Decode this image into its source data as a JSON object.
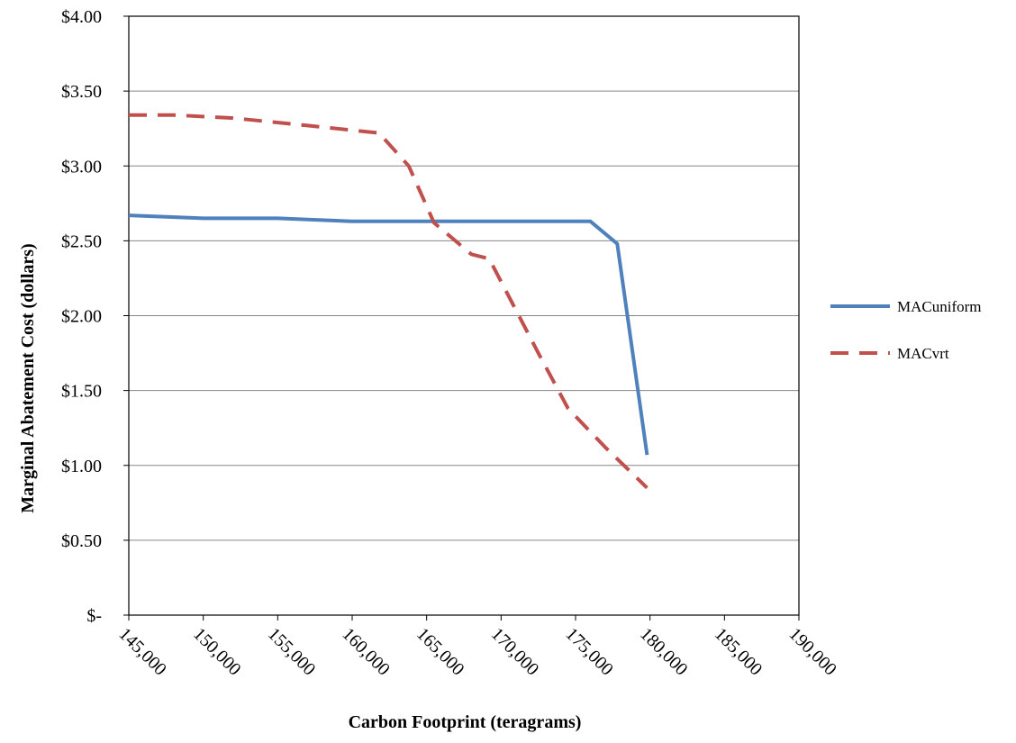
{
  "chart_data": {
    "type": "line",
    "title": "",
    "xlabel": "Carbon Footprint (teragrams)",
    "ylabel": "Marginal Abatement Cost (dollars)",
    "xlim": [
      145000,
      190000
    ],
    "ylim": [
      0,
      4
    ],
    "x_ticks": [
      145000,
      150000,
      155000,
      160000,
      165000,
      170000,
      175000,
      180000,
      185000,
      190000
    ],
    "x_tick_labels": [
      "145,000",
      "150,000",
      "155,000",
      "160,000",
      "165,000",
      "170,000",
      "175,000",
      "180,000",
      "185,000",
      "190,000"
    ],
    "y_ticks": [
      0,
      0.5,
      1,
      1.5,
      2,
      2.5,
      3,
      3.5,
      4
    ],
    "y_tick_labels": [
      "$-",
      "$0.50",
      "$1.00",
      "$1.50",
      "$2.00",
      "$2.50",
      "$3.00",
      "$3.50",
      "$4.00"
    ],
    "grid": "horizontal",
    "legend_position": "right",
    "series": [
      {
        "name": "MACuniform",
        "color": "#4F81BD",
        "style": "solid",
        "points": [
          [
            145000,
            2.67
          ],
          [
            150000,
            2.65
          ],
          [
            155000,
            2.65
          ],
          [
            160000,
            2.63
          ],
          [
            165000,
            2.63
          ],
          [
            170000,
            2.63
          ],
          [
            176000,
            2.63
          ],
          [
            177800,
            2.48
          ],
          [
            179800,
            1.07
          ]
        ]
      },
      {
        "name": "MACvrt",
        "color": "#C0504D",
        "style": "dashed",
        "points": [
          [
            145000,
            3.34
          ],
          [
            148000,
            3.34
          ],
          [
            152000,
            3.32
          ],
          [
            157000,
            3.27
          ],
          [
            161800,
            3.22
          ],
          [
            163800,
            3.0
          ],
          [
            165500,
            2.62
          ],
          [
            168000,
            2.41
          ],
          [
            169200,
            2.38
          ],
          [
            172500,
            1.75
          ],
          [
            174500,
            1.38
          ],
          [
            177000,
            1.12
          ],
          [
            179800,
            0.85
          ]
        ]
      }
    ]
  }
}
